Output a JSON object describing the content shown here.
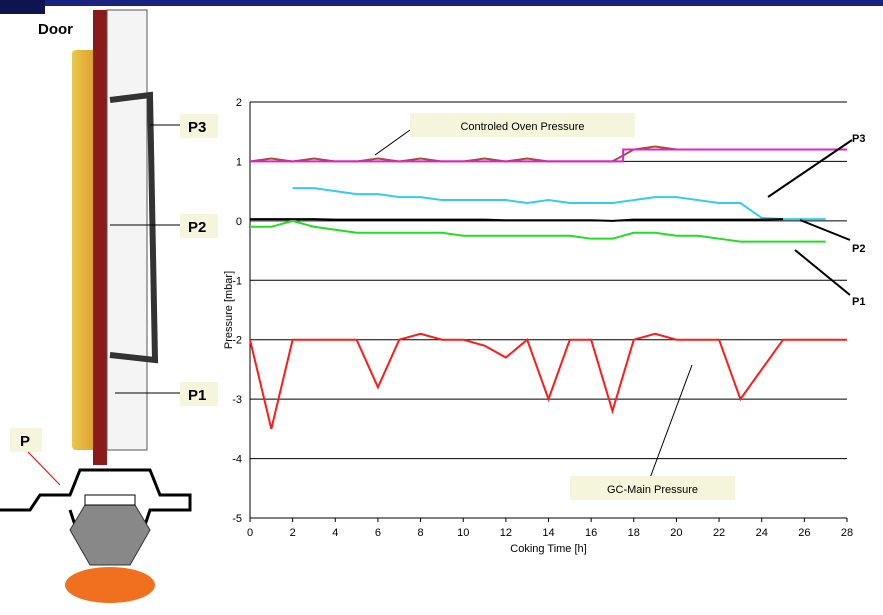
{
  "diagram": {
    "door": "Door",
    "p3": "P3",
    "p2": "P2",
    "p1": "P1",
    "p": "P"
  },
  "chart_data": {
    "type": "line",
    "x_label": "Coking Time [h]",
    "y_label": "Pressure [mbar]",
    "annotations": {
      "oven": "Controled Oven Pressure",
      "gc": "GC-Main Pressure",
      "p3": "P3",
      "p2": "P2",
      "p1": "P1"
    },
    "x": [
      0,
      1,
      2,
      3,
      4,
      5,
      6,
      7,
      8,
      9,
      10,
      11,
      12,
      13,
      14,
      15,
      16,
      17,
      18,
      19,
      20,
      21,
      22,
      23,
      24,
      25,
      26,
      27,
      28
    ],
    "xlim": [
      0,
      28
    ],
    "ylim": [
      -5,
      2
    ],
    "xticks": [
      0,
      2,
      4,
      6,
      8,
      10,
      12,
      14,
      16,
      18,
      20,
      22,
      24,
      26,
      28
    ],
    "yticks": [
      -5,
      -4,
      -3,
      -2,
      -1,
      0,
      1,
      2
    ],
    "grid": true,
    "series": [
      {
        "color": "#a0522d",
        "values": [
          1,
          1.05,
          1,
          1.05,
          1,
          1,
          1.05,
          1,
          1.05,
          1,
          1,
          1.05,
          1,
          1.05,
          1,
          1,
          1,
          1,
          1.2,
          1.25,
          1.2,
          1.2,
          1.2,
          1.2,
          1.2,
          1.2,
          1.2,
          1.2,
          1.2
        ]
      },
      {
        "color": "#e020d0",
        "x": [
          0,
          17.5,
          17.5,
          28
        ],
        "values": [
          1,
          1,
          1.2,
          1.2
        ]
      },
      {
        "color": "#33ccf0",
        "values": [
          null,
          null,
          0.55,
          0.55,
          0.5,
          0.45,
          0.45,
          0.4,
          0.4,
          0.35,
          0.35,
          0.35,
          0.35,
          0.3,
          0.35,
          0.3,
          0.3,
          0.3,
          0.35,
          0.4,
          0.4,
          0.35,
          0.3,
          0.3,
          0.05,
          0.03,
          0.03,
          0.03,
          null
        ]
      },
      {
        "color": "#000000",
        "values": [
          0.03,
          0.03,
          0.03,
          0.03,
          0.02,
          0.02,
          0.02,
          0.02,
          0.02,
          0.02,
          0.02,
          0.02,
          0.01,
          0.01,
          0.01,
          0.01,
          0.01,
          0,
          0.02,
          0.02,
          0.02,
          0.02,
          0.02,
          0.02,
          0.02,
          0.03,
          null,
          null,
          null
        ]
      },
      {
        "color": "#22dd22",
        "values": [
          -0.1,
          -0.1,
          0,
          -0.1,
          -0.15,
          -0.2,
          -0.2,
          -0.2,
          -0.2,
          -0.2,
          -0.25,
          -0.25,
          -0.25,
          -0.25,
          -0.25,
          -0.25,
          -0.3,
          -0.3,
          -0.2,
          -0.2,
          -0.25,
          -0.25,
          -0.3,
          -0.35,
          -0.35,
          -0.35,
          -0.35,
          -0.35,
          null
        ]
      },
      {
        "color": "#ff1a1a",
        "values": [
          -2,
          -3.5,
          -2,
          -2,
          -2,
          -2,
          -2.8,
          -2,
          -1.9,
          -2,
          -2,
          -2.1,
          -2.3,
          -2,
          -3,
          -2,
          -2,
          -3.2,
          -2,
          -1.9,
          -2,
          -2,
          -2,
          -3,
          -2.5,
          -2,
          -2,
          -2,
          -2
        ]
      }
    ]
  }
}
